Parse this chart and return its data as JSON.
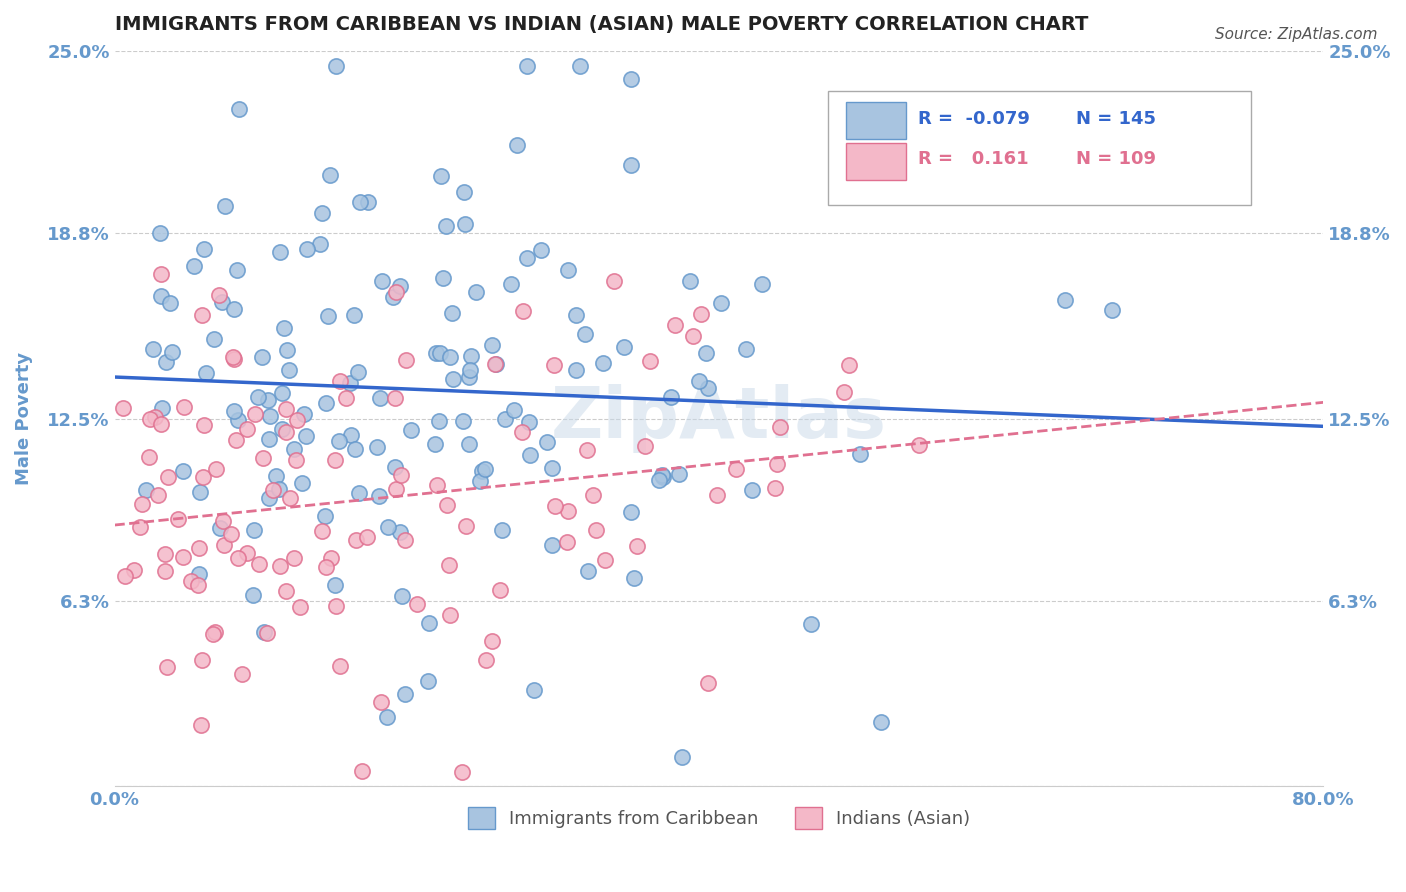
{
  "title": "IMMIGRANTS FROM CARIBBEAN VS INDIAN (ASIAN) MALE POVERTY CORRELATION CHART",
  "source_text": "Source: ZipAtlas.com",
  "xlabel": "",
  "ylabel": "Male Poverty",
  "watermark": "ZipAtlas",
  "xlim": [
    0.0,
    0.8
  ],
  "ylim": [
    0.0,
    0.25
  ],
  "xticks": [
    0.0,
    0.8
  ],
  "xtick_labels": [
    "0.0%",
    "80.0%"
  ],
  "ytick_vals": [
    0.0,
    0.063,
    0.125,
    0.188,
    0.25
  ],
  "ytick_labels": [
    "",
    "6.3%",
    "12.5%",
    "18.8%",
    "25.0%"
  ],
  "grid_color": "#cccccc",
  "series1_label": "Immigrants from Caribbean",
  "series1_color": "#a8c4e0",
  "series1_edge_color": "#6699cc",
  "series1_R": -0.079,
  "series1_N": 145,
  "series1_line_color": "#3366cc",
  "series2_label": "Indians (Asian)",
  "series2_color": "#f4b8c8",
  "series2_edge_color": "#e07090",
  "series2_R": 0.161,
  "series2_N": 109,
  "series2_line_color": "#e07090",
  "legend_box_color": "#f0f0f0",
  "title_color": "#333333",
  "axis_label_color": "#6699cc",
  "tick_label_color": "#6699cc",
  "background_color": "#ffffff",
  "seed1": 42,
  "seed2": 99
}
